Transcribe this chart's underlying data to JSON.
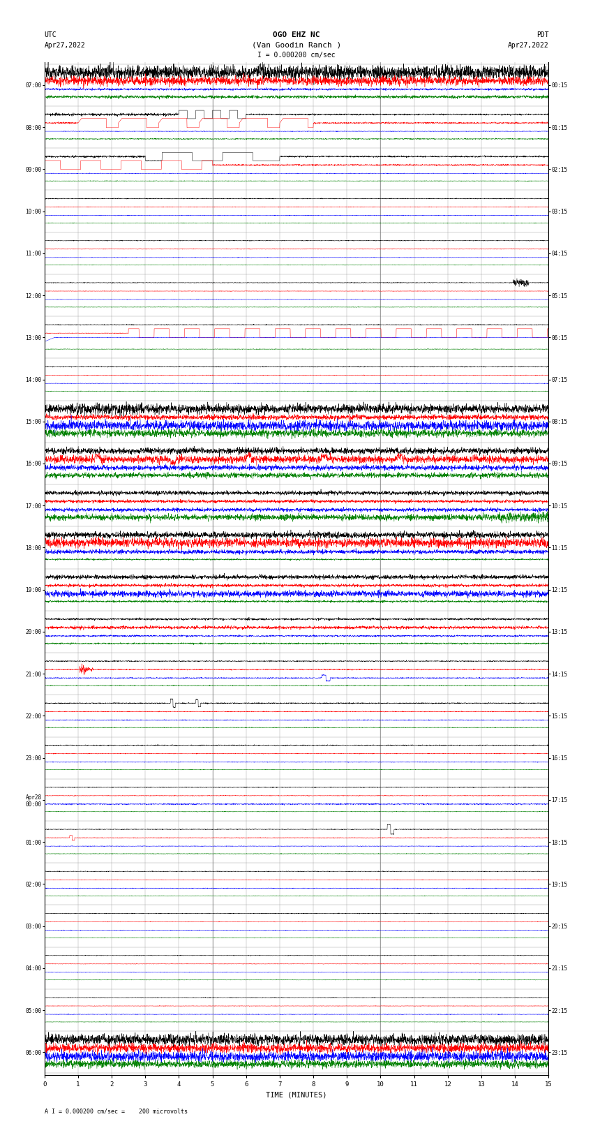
{
  "title_line1": "OGO EHZ NC",
  "title_line2": "(Van Goodin Ranch )",
  "title_scale": "I = 0.000200 cm/sec",
  "left_header1": "UTC",
  "left_header2": "Apr27,2022",
  "right_header1": "PDT",
  "right_header2": "Apr27,2022",
  "footer": "A I = 0.000200 cm/sec =    200 microvolts",
  "xlabel": "TIME (MINUTES)",
  "trace_colors": [
    "#000000",
    "#ff0000",
    "#0000ff",
    "#008000"
  ],
  "utc_labels": [
    "07:00",
    "08:00",
    "09:00",
    "10:00",
    "11:00",
    "12:00",
    "13:00",
    "14:00",
    "15:00",
    "16:00",
    "17:00",
    "18:00",
    "19:00",
    "20:00",
    "21:00",
    "22:00",
    "23:00",
    "Apr28\n00:00",
    "01:00",
    "02:00",
    "03:00",
    "04:00",
    "05:00",
    "06:00"
  ],
  "pdt_labels": [
    "00:15",
    "01:15",
    "02:15",
    "03:15",
    "04:15",
    "05:15",
    "06:15",
    "07:15",
    "08:15",
    "09:15",
    "10:15",
    "11:15",
    "12:15",
    "13:15",
    "14:15",
    "15:15",
    "16:15",
    "17:15",
    "18:15",
    "19:15",
    "20:15",
    "21:15",
    "22:15",
    "23:15"
  ]
}
